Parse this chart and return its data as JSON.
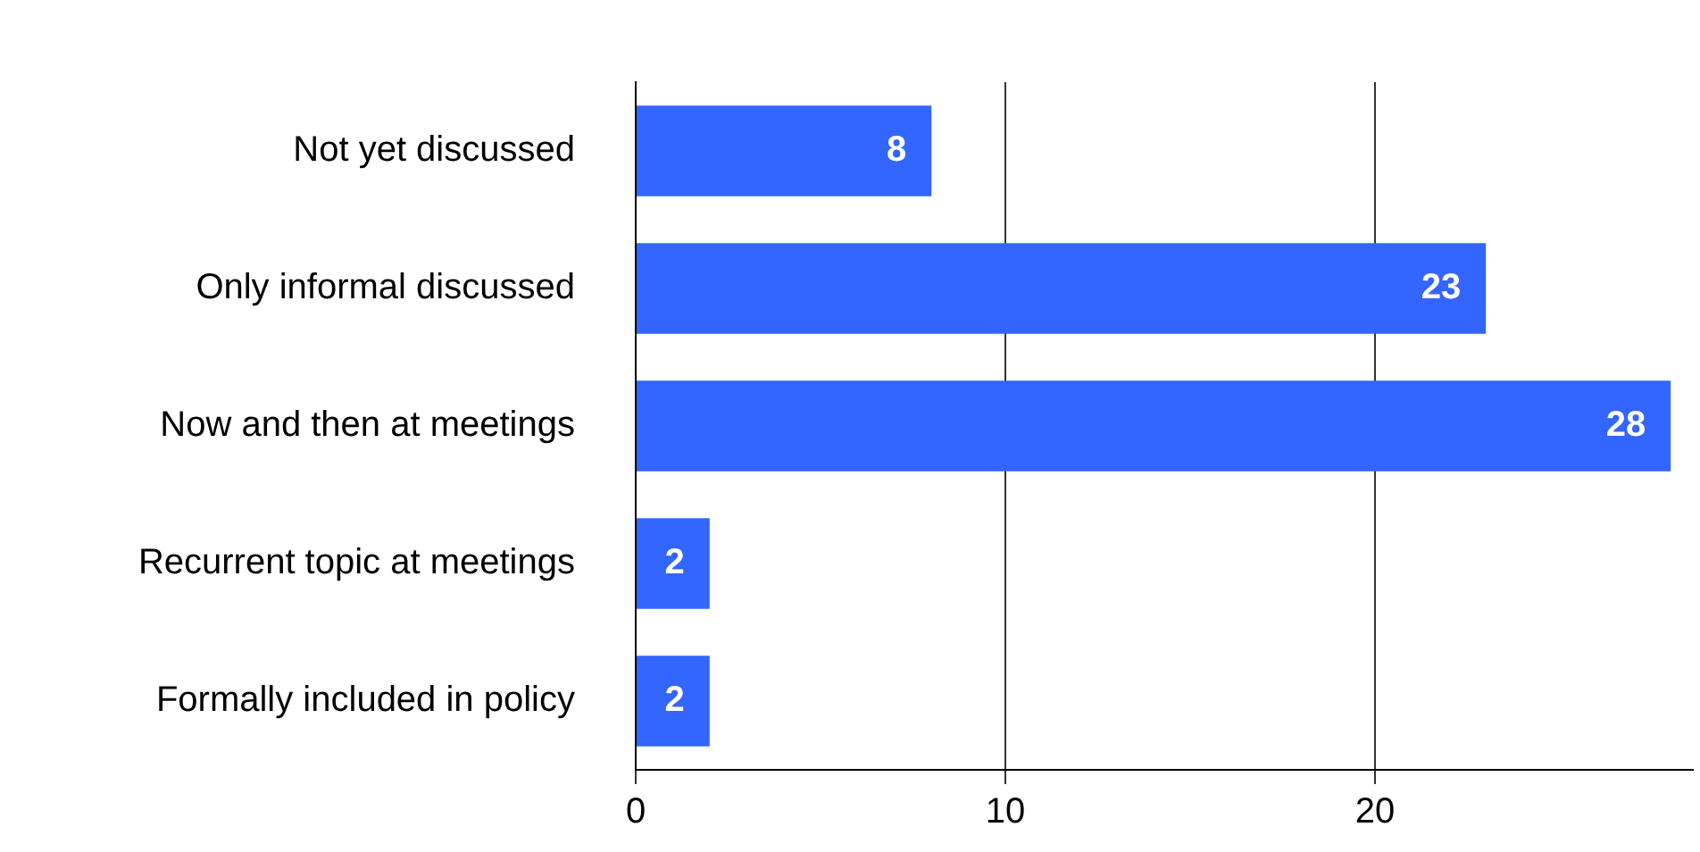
{
  "chart_data": {
    "type": "bar",
    "orientation": "horizontal",
    "categories": [
      "Not yet discussed",
      "Only informal discussed",
      "Now and then at meetings",
      "Recurrent topic at meetings",
      "Formally included in policy"
    ],
    "values": [
      8,
      23,
      28,
      2,
      2
    ],
    "color": "#3366ff",
    "xlim": [
      0,
      28.6
    ],
    "xticks": [
      0,
      10,
      20
    ],
    "grid": "x",
    "data_labels": true,
    "legend": false
  }
}
